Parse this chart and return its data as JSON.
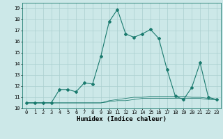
{
  "x": [
    0,
    1,
    2,
    3,
    4,
    5,
    6,
    7,
    8,
    9,
    10,
    11,
    12,
    13,
    14,
    15,
    16,
    17,
    18,
    19,
    20,
    21,
    22,
    23
  ],
  "y_main": [
    10.5,
    10.5,
    10.5,
    10.5,
    11.7,
    11.7,
    11.5,
    12.3,
    12.2,
    14.7,
    17.8,
    18.9,
    16.7,
    16.4,
    16.7,
    17.1,
    16.3,
    13.5,
    11.1,
    10.8,
    11.9,
    14.1,
    11.0,
    10.8
  ],
  "y_flat1": [
    10.5,
    10.5,
    10.5,
    10.5,
    10.5,
    10.5,
    10.5,
    10.5,
    10.5,
    10.5,
    10.7,
    10.8,
    10.9,
    11.0,
    11.0,
    11.1,
    11.1,
    11.1,
    11.1,
    11.1,
    11.0,
    11.0,
    10.9,
    10.8
  ],
  "y_flat2": [
    10.5,
    10.5,
    10.5,
    10.5,
    10.5,
    10.5,
    10.5,
    10.5,
    10.5,
    10.5,
    10.6,
    10.7,
    10.7,
    10.8,
    10.9,
    10.9,
    10.9,
    10.9,
    10.9,
    10.9,
    10.9,
    10.9,
    10.8,
    10.8
  ],
  "color": "#1a7a6e",
  "bg_color": "#cce8e8",
  "grid_color": "#aacfcf",
  "xlabel": "Humidex (Indice chaleur)",
  "ylim": [
    10.0,
    19.5
  ],
  "xlim": [
    -0.5,
    23.5
  ],
  "yticks": [
    10,
    11,
    12,
    13,
    14,
    15,
    16,
    17,
    18,
    19
  ],
  "xticks": [
    0,
    1,
    2,
    3,
    4,
    5,
    6,
    7,
    8,
    9,
    10,
    11,
    12,
    13,
    14,
    15,
    16,
    17,
    18,
    19,
    20,
    21,
    22,
    23
  ],
  "tick_fontsize": 5.0,
  "xlabel_fontsize": 6.5,
  "marker_size": 2.0,
  "line_width": 0.8
}
